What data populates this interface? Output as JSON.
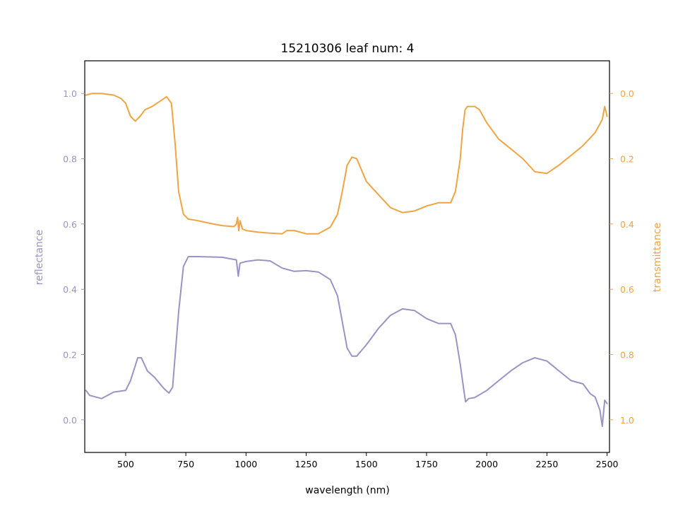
{
  "chart_data": {
    "type": "line",
    "title": "15210306 leaf num: 4",
    "xlabel": "wavelength (nm)",
    "ylabel_left": "reflectance",
    "ylabel_right": "transmittance",
    "xlim": [
      330,
      2510
    ],
    "ylim_left": [
      -0.1,
      1.1
    ],
    "ylim_right": [
      1.1,
      -0.1
    ],
    "right_axis_inverted": true,
    "x_ticks": [
      500,
      750,
      1000,
      1250,
      1500,
      1750,
      2000,
      2250,
      2500
    ],
    "x_tick_labels": [
      "500",
      "750",
      "1000",
      "1250",
      "1500",
      "1750",
      "2000",
      "2250",
      "2500"
    ],
    "y_left_ticks": [
      0.0,
      0.2,
      0.4,
      0.6,
      0.8,
      1.0
    ],
    "y_left_tick_labels": [
      "0.0",
      "0.2",
      "0.4",
      "0.6",
      "0.8",
      "1.0"
    ],
    "y_right_ticks": [
      0.0,
      0.2,
      0.4,
      0.6,
      0.8,
      1.0
    ],
    "y_right_tick_labels": [
      "0.0",
      "0.2",
      "0.4",
      "0.6",
      "0.8",
      "1.0"
    ],
    "grid": false,
    "series": [
      {
        "axis": "left",
        "color": "#9b93c6",
        "points": [
          [
            335,
            0.09
          ],
          [
            350,
            0.075
          ],
          [
            400,
            0.065
          ],
          [
            450,
            0.085
          ],
          [
            500,
            0.09
          ],
          [
            520,
            0.12
          ],
          [
            550,
            0.19
          ],
          [
            565,
            0.19
          ],
          [
            590,
            0.15
          ],
          [
            620,
            0.13
          ],
          [
            660,
            0.095
          ],
          [
            680,
            0.082
          ],
          [
            695,
            0.1
          ],
          [
            720,
            0.33
          ],
          [
            740,
            0.47
          ],
          [
            760,
            0.5
          ],
          [
            800,
            0.5
          ],
          [
            900,
            0.498
          ],
          [
            960,
            0.49
          ],
          [
            968,
            0.44
          ],
          [
            975,
            0.48
          ],
          [
            1000,
            0.485
          ],
          [
            1050,
            0.49
          ],
          [
            1100,
            0.487
          ],
          [
            1150,
            0.465
          ],
          [
            1200,
            0.455
          ],
          [
            1250,
            0.457
          ],
          [
            1300,
            0.453
          ],
          [
            1350,
            0.43
          ],
          [
            1380,
            0.38
          ],
          [
            1400,
            0.3
          ],
          [
            1420,
            0.22
          ],
          [
            1440,
            0.195
          ],
          [
            1460,
            0.195
          ],
          [
            1500,
            0.23
          ],
          [
            1550,
            0.28
          ],
          [
            1600,
            0.32
          ],
          [
            1650,
            0.34
          ],
          [
            1700,
            0.335
          ],
          [
            1750,
            0.31
          ],
          [
            1800,
            0.295
          ],
          [
            1850,
            0.295
          ],
          [
            1870,
            0.26
          ],
          [
            1890,
            0.17
          ],
          [
            1905,
            0.09
          ],
          [
            1912,
            0.055
          ],
          [
            1925,
            0.065
          ],
          [
            1950,
            0.068
          ],
          [
            2000,
            0.09
          ],
          [
            2050,
            0.12
          ],
          [
            2100,
            0.15
          ],
          [
            2150,
            0.175
          ],
          [
            2200,
            0.19
          ],
          [
            2250,
            0.18
          ],
          [
            2300,
            0.15
          ],
          [
            2350,
            0.12
          ],
          [
            2400,
            0.11
          ],
          [
            2430,
            0.08
          ],
          [
            2450,
            0.07
          ],
          [
            2470,
            0.03
          ],
          [
            2480,
            -0.02
          ],
          [
            2490,
            0.06
          ],
          [
            2500,
            0.05
          ]
        ]
      },
      {
        "axis": "right",
        "color": "#f0a443",
        "points": [
          [
            335,
            0.005
          ],
          [
            360,
            0.0
          ],
          [
            400,
            0.0
          ],
          [
            450,
            0.005
          ],
          [
            480,
            0.015
          ],
          [
            500,
            0.03
          ],
          [
            520,
            0.07
          ],
          [
            540,
            0.085
          ],
          [
            560,
            0.07
          ],
          [
            580,
            0.05
          ],
          [
            610,
            0.04
          ],
          [
            650,
            0.02
          ],
          [
            670,
            0.01
          ],
          [
            690,
            0.03
          ],
          [
            705,
            0.15
          ],
          [
            720,
            0.3
          ],
          [
            740,
            0.37
          ],
          [
            760,
            0.385
          ],
          [
            800,
            0.39
          ],
          [
            850,
            0.398
          ],
          [
            900,
            0.405
          ],
          [
            950,
            0.408
          ],
          [
            960,
            0.4
          ],
          [
            965,
            0.38
          ],
          [
            970,
            0.42
          ],
          [
            975,
            0.39
          ],
          [
            985,
            0.415
          ],
          [
            1000,
            0.42
          ],
          [
            1050,
            0.425
          ],
          [
            1100,
            0.428
          ],
          [
            1150,
            0.43
          ],
          [
            1170,
            0.42
          ],
          [
            1200,
            0.42
          ],
          [
            1250,
            0.43
          ],
          [
            1300,
            0.43
          ],
          [
            1350,
            0.41
          ],
          [
            1380,
            0.37
          ],
          [
            1400,
            0.3
          ],
          [
            1420,
            0.22
          ],
          [
            1440,
            0.195
          ],
          [
            1460,
            0.2
          ],
          [
            1500,
            0.27
          ],
          [
            1550,
            0.31
          ],
          [
            1600,
            0.35
          ],
          [
            1650,
            0.365
          ],
          [
            1700,
            0.36
          ],
          [
            1750,
            0.345
          ],
          [
            1800,
            0.335
          ],
          [
            1850,
            0.335
          ],
          [
            1870,
            0.3
          ],
          [
            1890,
            0.2
          ],
          [
            1900,
            0.11
          ],
          [
            1910,
            0.05
          ],
          [
            1920,
            0.04
          ],
          [
            1950,
            0.04
          ],
          [
            1970,
            0.05
          ],
          [
            2000,
            0.09
          ],
          [
            2050,
            0.14
          ],
          [
            2100,
            0.17
          ],
          [
            2150,
            0.2
          ],
          [
            2200,
            0.24
          ],
          [
            2250,
            0.245
          ],
          [
            2300,
            0.22
          ],
          [
            2350,
            0.19
          ],
          [
            2400,
            0.16
          ],
          [
            2450,
            0.12
          ],
          [
            2480,
            0.08
          ],
          [
            2490,
            0.04
          ],
          [
            2500,
            0.07
          ]
        ]
      }
    ]
  }
}
